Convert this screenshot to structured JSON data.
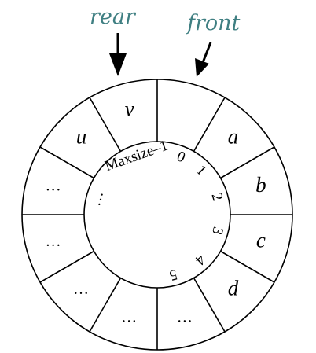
{
  "pointers": {
    "rear": "rear",
    "front": "front"
  },
  "slots": [
    {
      "text": ""
    },
    {
      "text": "a"
    },
    {
      "text": "b"
    },
    {
      "text": "c"
    },
    {
      "text": "d"
    },
    {
      "text": "…"
    },
    {
      "text": "…"
    },
    {
      "text": "…"
    },
    {
      "text": "…"
    },
    {
      "text": "…"
    },
    {
      "text": "u"
    },
    {
      "text": "v"
    }
  ],
  "indices": [
    "Maxsize–1",
    "0",
    "1",
    "2",
    "3",
    "4",
    "5",
    "…"
  ]
}
